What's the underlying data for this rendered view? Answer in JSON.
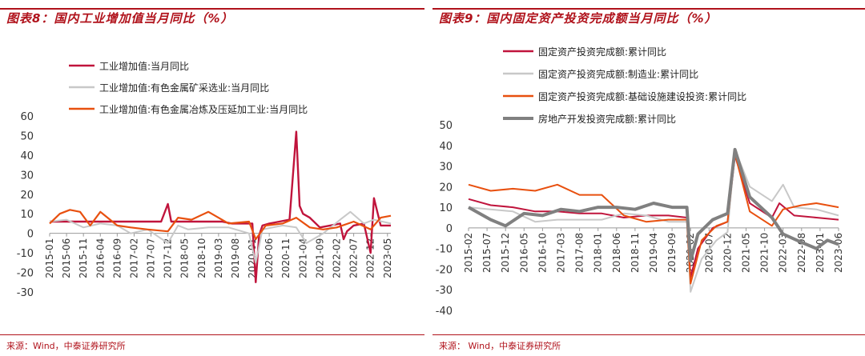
{
  "left": {
    "title": "图表8：国内工业增加值当月同比（%）",
    "source": "来源：Wind，中泰证券研究所"
  },
  "right": {
    "title": "图表9：国内固定资产投资完成额当月同比（%）",
    "source": "来源：  Wind，中泰证券研究所"
  },
  "colors": {
    "crimson": "#c0143c",
    "gray": "#c8c8c8",
    "orange": "#e8500f",
    "darkgray": "#808080",
    "accent": "#b0121b"
  },
  "chart_data": [
    {
      "type": "line",
      "ylim": [
        -30,
        60
      ],
      "yticks": [
        -30,
        -20,
        -10,
        0,
        10,
        20,
        30,
        40,
        50,
        60
      ],
      "xlim": [
        "2015-01",
        "2023-06"
      ],
      "xtick_labels": [
        "2015-01",
        "2015-06",
        "2015-11",
        "2016-04",
        "2016-09",
        "2017-02",
        "2017-07",
        "2017-12",
        "2018-05",
        "2018-10",
        "2019-03",
        "2019-08",
        "2020-01",
        "2020-06",
        "2020-11",
        "2021-04",
        "2021-09",
        "2022-02",
        "2022-07",
        "2022-12",
        "2023-05"
      ],
      "legend_position": "top-left",
      "series": [
        {
          "name": "工业增加值:当月同比",
          "color": "#c0143c",
          "x": [
            "2015-01",
            "2015-04",
            "2015-07",
            "2015-10",
            "2016-01",
            "2016-04",
            "2016-07",
            "2016-10",
            "2017-01",
            "2017-04",
            "2017-07",
            "2017-10",
            "2017-12",
            "2018-01",
            "2018-04",
            "2018-07",
            "2018-10",
            "2019-01",
            "2019-04",
            "2019-07",
            "2019-10",
            "2020-01",
            "2020-02",
            "2020-03",
            "2020-04",
            "2020-06",
            "2020-09",
            "2020-12",
            "2021-02",
            "2021-03",
            "2021-04",
            "2021-06",
            "2021-09",
            "2021-12",
            "2022-03",
            "2022-04",
            "2022-05",
            "2022-07",
            "2022-10",
            "2022-12",
            "2023-01",
            "2023-03",
            "2023-06"
          ],
          "values": [
            6,
            6,
            6,
            6,
            6,
            6,
            6,
            6,
            6,
            6,
            6,
            6,
            15,
            6,
            6,
            6,
            6,
            6,
            6,
            5,
            5,
            5,
            -25,
            -1,
            4,
            5,
            6,
            7,
            52,
            14,
            10,
            8,
            3,
            4,
            5,
            -3,
            1,
            4,
            5,
            -10,
            18,
            4,
            4
          ]
        },
        {
          "name": "工业增加值:有色金属矿采选业:当月同比",
          "color": "#c8c8c8",
          "x": [
            "2015-01",
            "2015-06",
            "2015-11",
            "2016-04",
            "2016-09",
            "2017-01",
            "2017-06",
            "2017-12",
            "2018-03",
            "2018-06",
            "2018-12",
            "2019-06",
            "2019-12",
            "2020-02",
            "2020-04",
            "2020-10",
            "2021-02",
            "2021-05",
            "2021-10",
            "2022-03",
            "2022-06",
            "2022-10",
            "2023-01",
            "2023-06"
          ],
          "values": [
            6,
            7,
            3,
            5,
            4,
            0,
            2,
            -5,
            4,
            2,
            3,
            3,
            0,
            -15,
            2,
            4,
            3,
            -5,
            0,
            7,
            11,
            5,
            7,
            5
          ]
        },
        {
          "name": "工业增加值:有色金属冶炼及压延加工业:当月同比",
          "color": "#e8500f",
          "x": [
            "2015-01",
            "2015-04",
            "2015-07",
            "2015-10",
            "2016-01",
            "2016-04",
            "2016-09",
            "2017-01",
            "2017-06",
            "2017-12",
            "2018-03",
            "2018-07",
            "2018-12",
            "2019-06",
            "2019-12",
            "2020-02",
            "2020-05",
            "2020-10",
            "2021-02",
            "2021-06",
            "2021-10",
            "2022-02",
            "2022-07",
            "2022-12",
            "2023-03",
            "2023-06"
          ],
          "values": [
            5,
            10,
            12,
            11,
            4,
            11,
            4,
            3,
            2,
            1,
            8,
            7,
            11,
            5,
            6,
            -3,
            4,
            5,
            8,
            3,
            2,
            3,
            6,
            2,
            8,
            9
          ]
        }
      ]
    },
    {
      "type": "line",
      "ylim": [
        -40,
        50
      ],
      "yticks": [
        -40,
        -30,
        -20,
        -10,
        0,
        10,
        20,
        30,
        40,
        50
      ],
      "xlim": [
        "2015-02",
        "2023-06"
      ],
      "xtick_labels": [
        "2015-02",
        "2015-07",
        "2015-12",
        "2016-05",
        "2016-10",
        "2017-03",
        "2017-08",
        "2018-01",
        "2018-06",
        "2018-11",
        "2019-04",
        "2019-09",
        "2020-02",
        "2020-07",
        "2020-12",
        "2021-05",
        "2021-10",
        "2022-03",
        "2022-08",
        "2023-01",
        "2023-06"
      ],
      "legend_position": "top-left",
      "series": [
        {
          "name": "固定资产投资完成额:累计同比",
          "color": "#c0143c",
          "x": [
            "2015-02",
            "2015-08",
            "2016-02",
            "2016-08",
            "2017-02",
            "2017-08",
            "2018-02",
            "2018-08",
            "2019-02",
            "2019-08",
            "2020-01",
            "2020-02",
            "2020-04",
            "2020-08",
            "2020-12",
            "2021-02",
            "2021-06",
            "2021-12",
            "2022-02",
            "2022-06",
            "2022-12",
            "2023-06"
          ],
          "values": [
            14,
            11,
            10,
            8,
            8,
            7,
            7,
            5,
            6,
            6,
            5,
            -24,
            -10,
            0,
            3,
            35,
            12,
            5,
            12,
            6,
            5,
            4
          ]
        },
        {
          "name": "固定资产投资完成额:制造业:累计同比",
          "color": "#c8c8c8",
          "x": [
            "2015-02",
            "2015-08",
            "2016-02",
            "2016-08",
            "2017-02",
            "2017-08",
            "2018-02",
            "2018-08",
            "2019-02",
            "2019-08",
            "2020-01",
            "2020-02",
            "2020-05",
            "2020-09",
            "2020-12",
            "2021-02",
            "2021-06",
            "2021-12",
            "2022-03",
            "2022-06",
            "2022-12",
            "2023-06"
          ],
          "values": [
            10,
            9,
            8,
            3,
            4,
            4,
            4,
            7,
            6,
            3,
            3,
            -31,
            -15,
            -6,
            -2,
            38,
            20,
            13,
            21,
            10,
            9,
            6
          ]
        },
        {
          "name": "固定资产投资完成额:基础设施建设投资:累计同比",
          "color": "#e8500f",
          "x": [
            "2015-02",
            "2015-08",
            "2016-02",
            "2016-08",
            "2017-02",
            "2017-08",
            "2018-02",
            "2018-08",
            "2019-02",
            "2019-08",
            "2020-01",
            "2020-02",
            "2020-05",
            "2020-09",
            "2020-12",
            "2021-02",
            "2021-06",
            "2021-12",
            "2022-03",
            "2022-08",
            "2022-12",
            "2023-06"
          ],
          "values": [
            21,
            18,
            19,
            18,
            21,
            16,
            16,
            6,
            3,
            4,
            4,
            -27,
            -6,
            1,
            3,
            36,
            8,
            1,
            9,
            11,
            12,
            10
          ]
        },
        {
          "name": "房地产开发投资完成额:累计同比",
          "color": "#808080",
          "x": [
            "2015-02",
            "2015-08",
            "2015-12",
            "2016-05",
            "2016-10",
            "2017-03",
            "2017-08",
            "2018-01",
            "2018-06",
            "2018-11",
            "2019-04",
            "2019-09",
            "2020-01",
            "2020-02",
            "2020-04",
            "2020-08",
            "2020-12",
            "2021-02",
            "2021-06",
            "2021-12",
            "2022-03",
            "2022-08",
            "2022-12",
            "2023-03",
            "2023-06"
          ],
          "values": [
            10,
            4,
            1,
            7,
            6,
            9,
            8,
            10,
            10,
            9,
            12,
            10,
            10,
            -16,
            -3,
            4,
            7,
            38,
            15,
            5,
            -3,
            -7,
            -10,
            -6,
            -8
          ]
        }
      ]
    }
  ]
}
